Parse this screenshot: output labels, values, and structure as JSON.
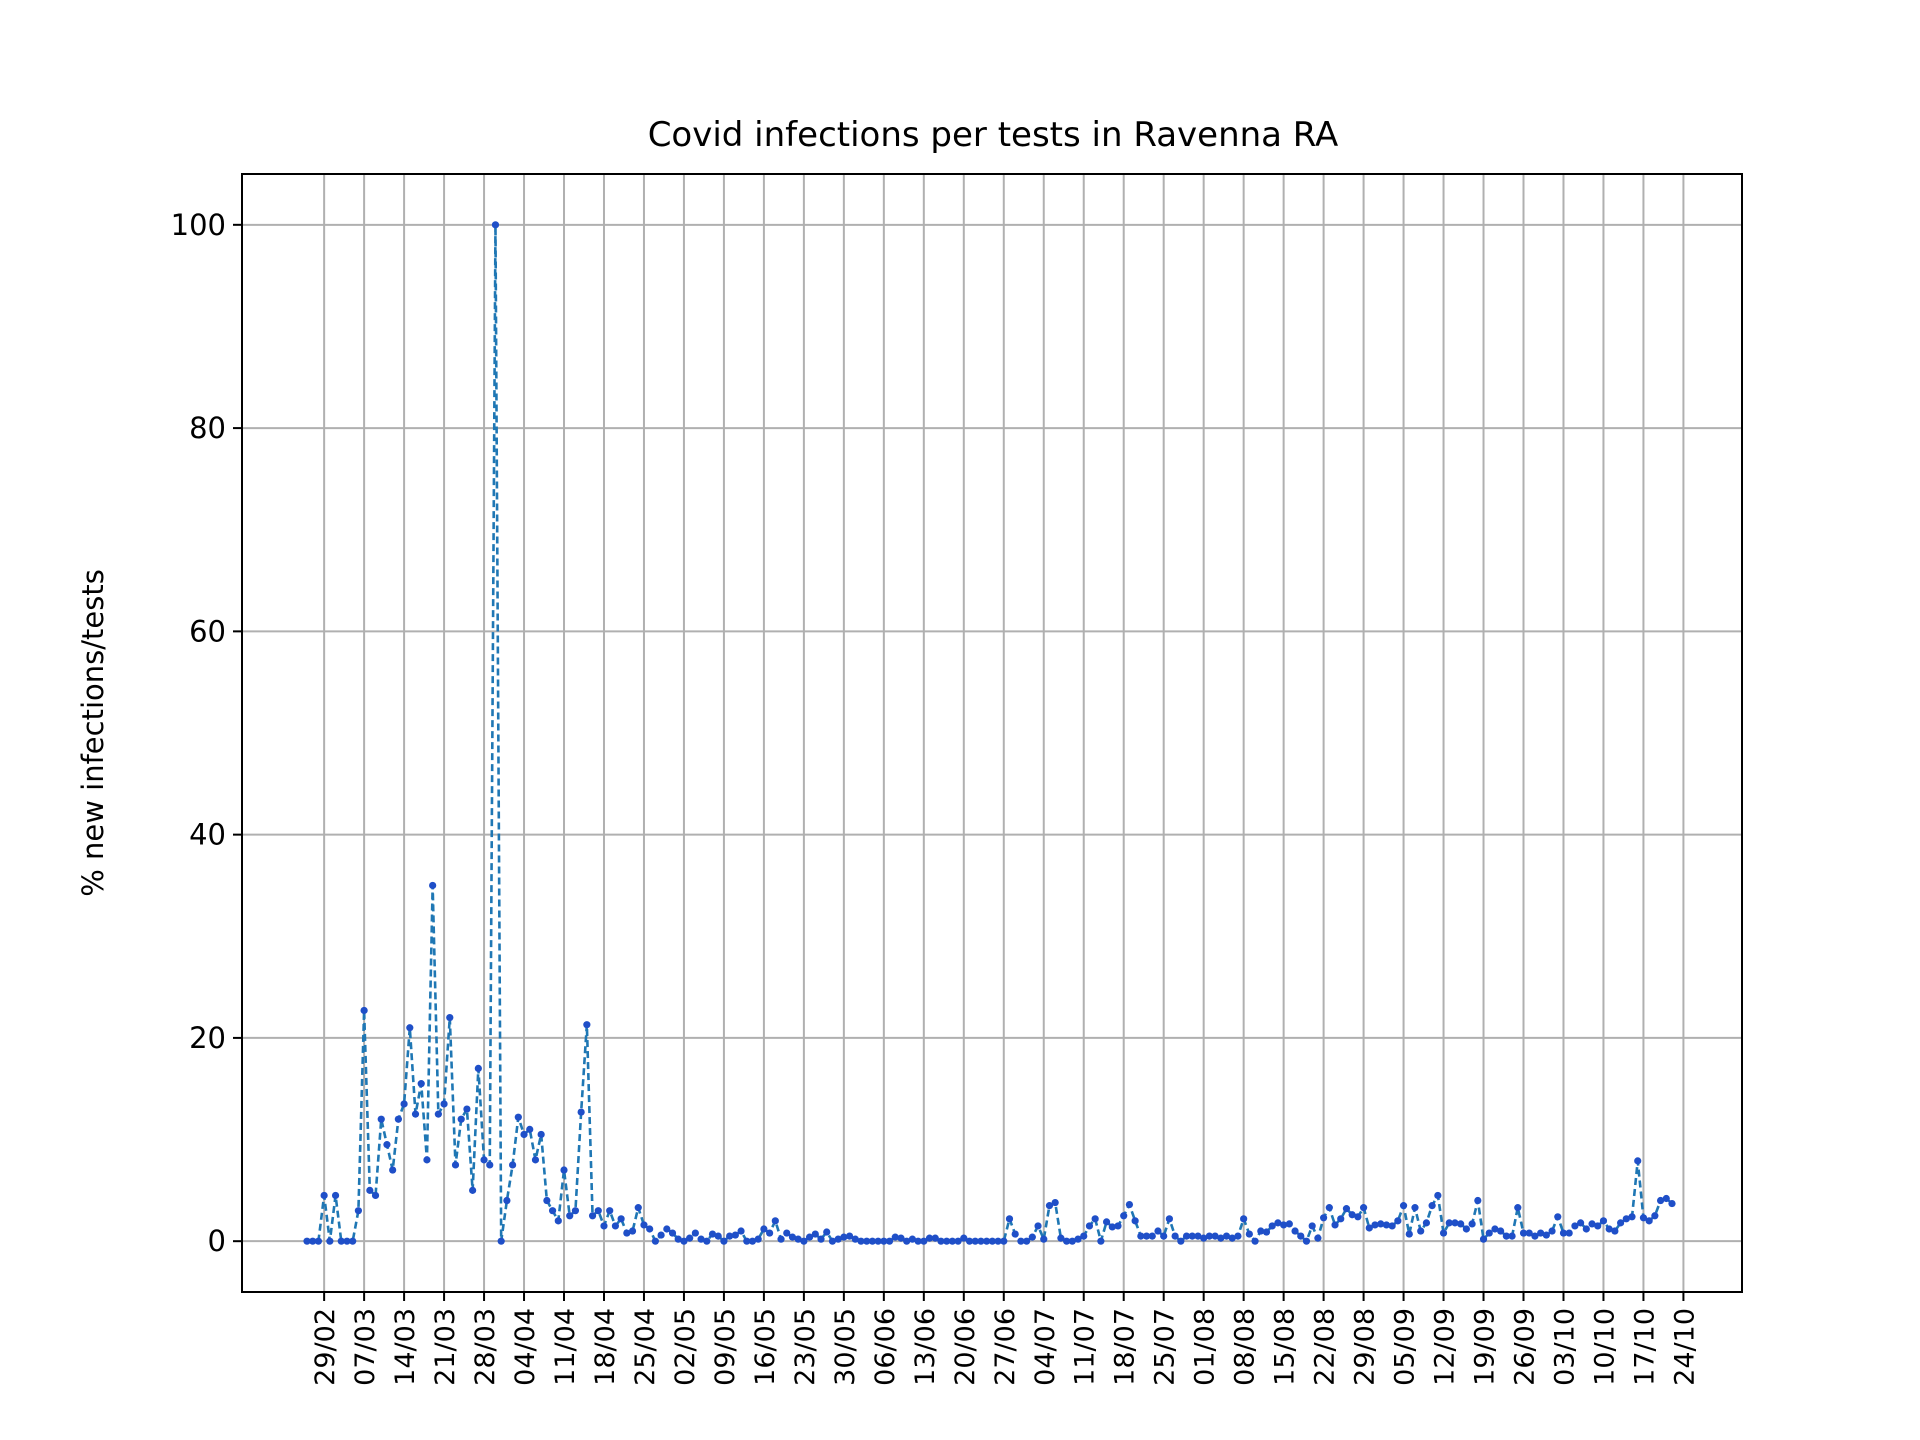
{
  "chart_data": {
    "type": "line",
    "title": "Covid infections per tests in Ravenna RA",
    "xlabel": "",
    "ylabel": "% new infections/tests",
    "x_start": "26/02",
    "x_end": "26/10",
    "xtick_labels": [
      "29/02",
      "07/03",
      "14/03",
      "21/03",
      "28/03",
      "04/04",
      "11/04",
      "18/04",
      "25/04",
      "02/05",
      "09/05",
      "16/05",
      "23/05",
      "30/05",
      "06/06",
      "13/06",
      "20/06",
      "27/06",
      "04/07",
      "11/07",
      "18/07",
      "25/07",
      "01/08",
      "08/08",
      "15/08",
      "22/08",
      "29/08",
      "05/09",
      "12/09",
      "19/09",
      "26/09",
      "03/10",
      "10/10",
      "17/10",
      "24/10"
    ],
    "yticks": [
      0,
      20,
      40,
      60,
      80,
      100
    ],
    "ylim": [
      -5,
      105
    ],
    "grid": true,
    "line_style": "dashed",
    "marker": "dot",
    "colors": {
      "line": "#1f77b4",
      "marker": "#1f4fc8",
      "grid": "#b0b0b0"
    },
    "values": [
      0,
      0,
      0,
      4.5,
      0,
      4.5,
      0,
      0,
      0,
      3,
      22.7,
      5,
      4.5,
      12,
      9.5,
      7,
      12,
      13.5,
      21,
      12.5,
      15.5,
      8,
      35,
      12.5,
      13.5,
      22,
      7.5,
      12,
      13,
      5,
      17,
      8,
      7.5,
      100,
      0,
      4,
      7.5,
      12.2,
      10.5,
      11,
      8,
      10.5,
      4,
      3,
      2,
      7,
      2.5,
      3,
      12.7,
      21.3,
      2.5,
      3,
      1.5,
      3,
      1.5,
      2.2,
      0.8,
      1,
      3.3,
      1.6,
      1.2,
      0,
      0.6,
      1.2,
      0.8,
      0.2,
      0,
      0.3,
      0.8,
      0.2,
      0,
      0.7,
      0.5,
      0,
      0.5,
      0.6,
      1,
      0,
      0,
      0.2,
      1.2,
      0.8,
      2,
      0.2,
      0.8,
      0.4,
      0.2,
      0,
      0.4,
      0.7,
      0.2,
      0.9,
      0,
      0.2,
      0.4,
      0.5,
      0.2,
      0,
      0,
      0,
      0,
      0,
      0,
      0.4,
      0.3,
      0,
      0.2,
      0,
      0,
      0.3,
      0.3,
      0,
      0,
      0,
      0,
      0.3,
      0,
      0,
      0,
      0,
      0,
      0,
      0,
      2.2,
      0.7,
      0,
      0,
      0.4,
      1.5,
      0.2,
      3.5,
      3.8,
      0.3,
      0,
      0,
      0.2,
      0.5,
      1.5,
      2.2,
      0,
      1.9,
      1.4,
      1.5,
      2.5,
      3.6,
      2,
      0.5,
      0.5,
      0.5,
      1,
      0.5,
      2.2,
      0.5,
      0,
      0.5,
      0.5,
      0.5,
      0.3,
      0.5,
      0.5,
      0.3,
      0.5,
      0.3,
      0.5,
      2.2,
      0.7,
      0,
      1,
      0.9,
      1.5,
      1.8,
      1.6,
      1.7,
      1,
      0.5,
      0,
      1.5,
      0.3,
      2.3,
      3.3,
      1.6,
      2.2,
      3.2,
      2.6,
      2.4,
      3.3,
      1.3,
      1.6,
      1.7,
      1.6,
      1.5,
      2,
      3.5,
      0.7,
      3.3,
      1,
      1.8,
      3.5,
      4.5,
      0.8,
      1.8,
      1.8,
      1.7,
      1.2,
      1.7,
      4,
      0.2,
      0.8,
      1.2,
      1,
      0.5,
      0.5,
      3.3,
      0.8,
      0.8,
      0.5,
      0.8,
      0.6,
      1,
      2.4,
      0.8,
      0.8,
      1.5,
      1.8,
      1.2,
      1.7,
      1.5,
      2,
      1.2,
      1,
      1.8,
      2.2,
      2.4,
      7.9,
      2.3,
      2,
      2.5,
      4,
      4.2,
      3.7
    ]
  }
}
